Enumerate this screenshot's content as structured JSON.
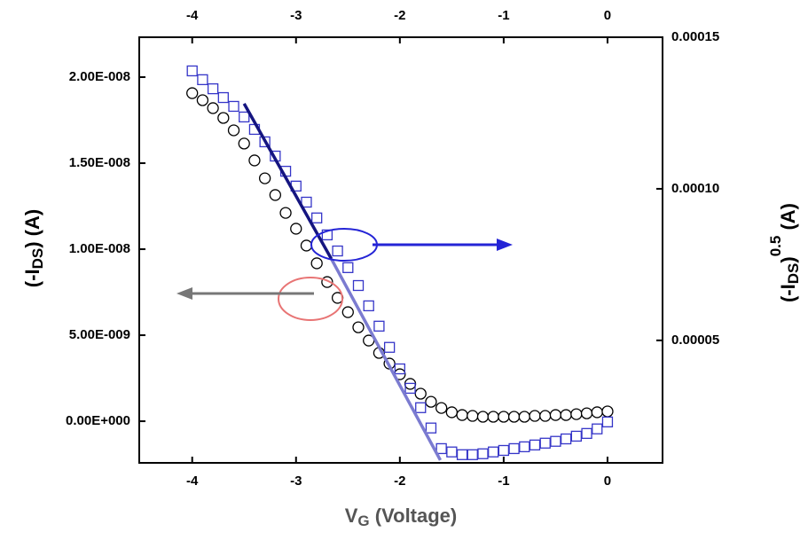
{
  "chart_data": {
    "type": "scatter",
    "x_label_parts": [
      "V",
      "G",
      " (Voltage)"
    ],
    "y_label_parts": [
      "(-I",
      "DS",
      ") (A)"
    ],
    "y2_label_parts": [
      "(-I",
      "DS",
      ")",
      "0.5",
      " (A)"
    ],
    "x": [
      -4,
      -3.9,
      -3.8,
      -3.7,
      -3.6,
      -3.5,
      -3.4,
      -3.3,
      -3.2,
      -3.1,
      -3,
      -2.9,
      -2.8,
      -2.7,
      -2.6,
      -2.5,
      -2.4,
      -2.3,
      -2.2,
      -2.1,
      -2,
      -1.9,
      -1.8,
      -1.7,
      -1.6,
      -1.5,
      -1.4,
      -1.3,
      -1.2,
      -1.1,
      -1,
      -0.9,
      -0.8,
      -0.7,
      -0.6,
      -0.5,
      -0.4,
      -0.3,
      -0.2,
      -0.1,
      0
    ],
    "xlim": [
      -4.51,
      0.53
    ],
    "xticks": [
      -4,
      -3,
      -2,
      -1,
      0
    ],
    "ylim": [
      -2.42e-09,
      2.232e-08
    ],
    "yticks": [
      {
        "value": 0,
        "label": "0.00E+000"
      },
      {
        "value": 5e-09,
        "label": "5.00E-009"
      },
      {
        "value": 1e-08,
        "label": "1.00E-008"
      },
      {
        "value": 1.5e-08,
        "label": "1.50E-008"
      },
      {
        "value": 2e-08,
        "label": "2.00E-008"
      }
    ],
    "y2lim": [
      9.6e-06,
      0.00015
    ],
    "y2ticks": [
      {
        "value": 5e-05,
        "label": "0.00005"
      },
      {
        "value": 0.0001,
        "label": "0.00010"
      },
      {
        "value": 0.00015,
        "label": "0.00015"
      }
    ],
    "series": [
      {
        "marker": "circle",
        "color": "#000000",
        "values": [
          1.907e-08,
          1.866e-08,
          1.82e-08,
          1.763e-08,
          1.691e-08,
          1.614e-08,
          1.516e-08,
          1.412e-08,
          1.315e-08,
          1.211e-08,
          1.119e-08,
          1.021e-08,
          9.18e-09,
          8.09e-09,
          7.17e-09,
          6.34e-09,
          5.46e-09,
          4.69e-09,
          3.97e-09,
          3.35e-09,
          2.73e-09,
          2.17e-09,
          1.6e-09,
          1.13e-09,
          7.7e-10,
          5.2e-10,
          3.6e-10,
          3.1e-10,
          2.6e-10,
          2.6e-10,
          2.6e-10,
          2.6e-10,
          2.6e-10,
          3.1e-10,
          3.1e-10,
          3.6e-10,
          3.6e-10,
          4.1e-10,
          4.6e-10,
          5.2e-10,
          5.7e-10
        ]
      },
      {
        "marker": "square",
        "color": "#3535c8",
        "axis": "y2",
        "values": [
          0.0001389,
          0.000136,
          0.000133,
          0.0001301,
          0.0001272,
          0.0001237,
          0.0001196,
          0.0001155,
          0.0001108,
          0.0001058,
          0.0001009,
          9.56e-05,
          9.04e-05,
          8.48e-05,
          7.95e-05,
          7.4e-05,
          6.81e-05,
          6.14e-05,
          5.47e-05,
          4.77e-05,
          4.06e-05,
          3.42e-05,
          2.78e-05,
          2.11e-05,
          1.43e-05,
          1.32e-05,
          1.23e-05,
          1.23e-05,
          1.26e-05,
          1.32e-05,
          1.37e-05,
          1.43e-05,
          1.49e-05,
          1.55e-05,
          1.61e-05,
          1.67e-05,
          1.75e-05,
          1.84e-05,
          1.93e-05,
          2.08e-05,
          2.31e-05
        ]
      }
    ],
    "fit_lines": [
      {
        "color": "#151580",
        "axis": "y2",
        "x": [
          -3.5,
          -2.66
        ],
        "values": [
          0.0001281,
          7.69e-05
        ]
      },
      {
        "color": "#7b7bd0",
        "axis": "y2",
        "x": [
          -2.66,
          -1.61
        ],
        "values": [
          7.69e-05,
          1.05e-05
        ]
      }
    ]
  }
}
